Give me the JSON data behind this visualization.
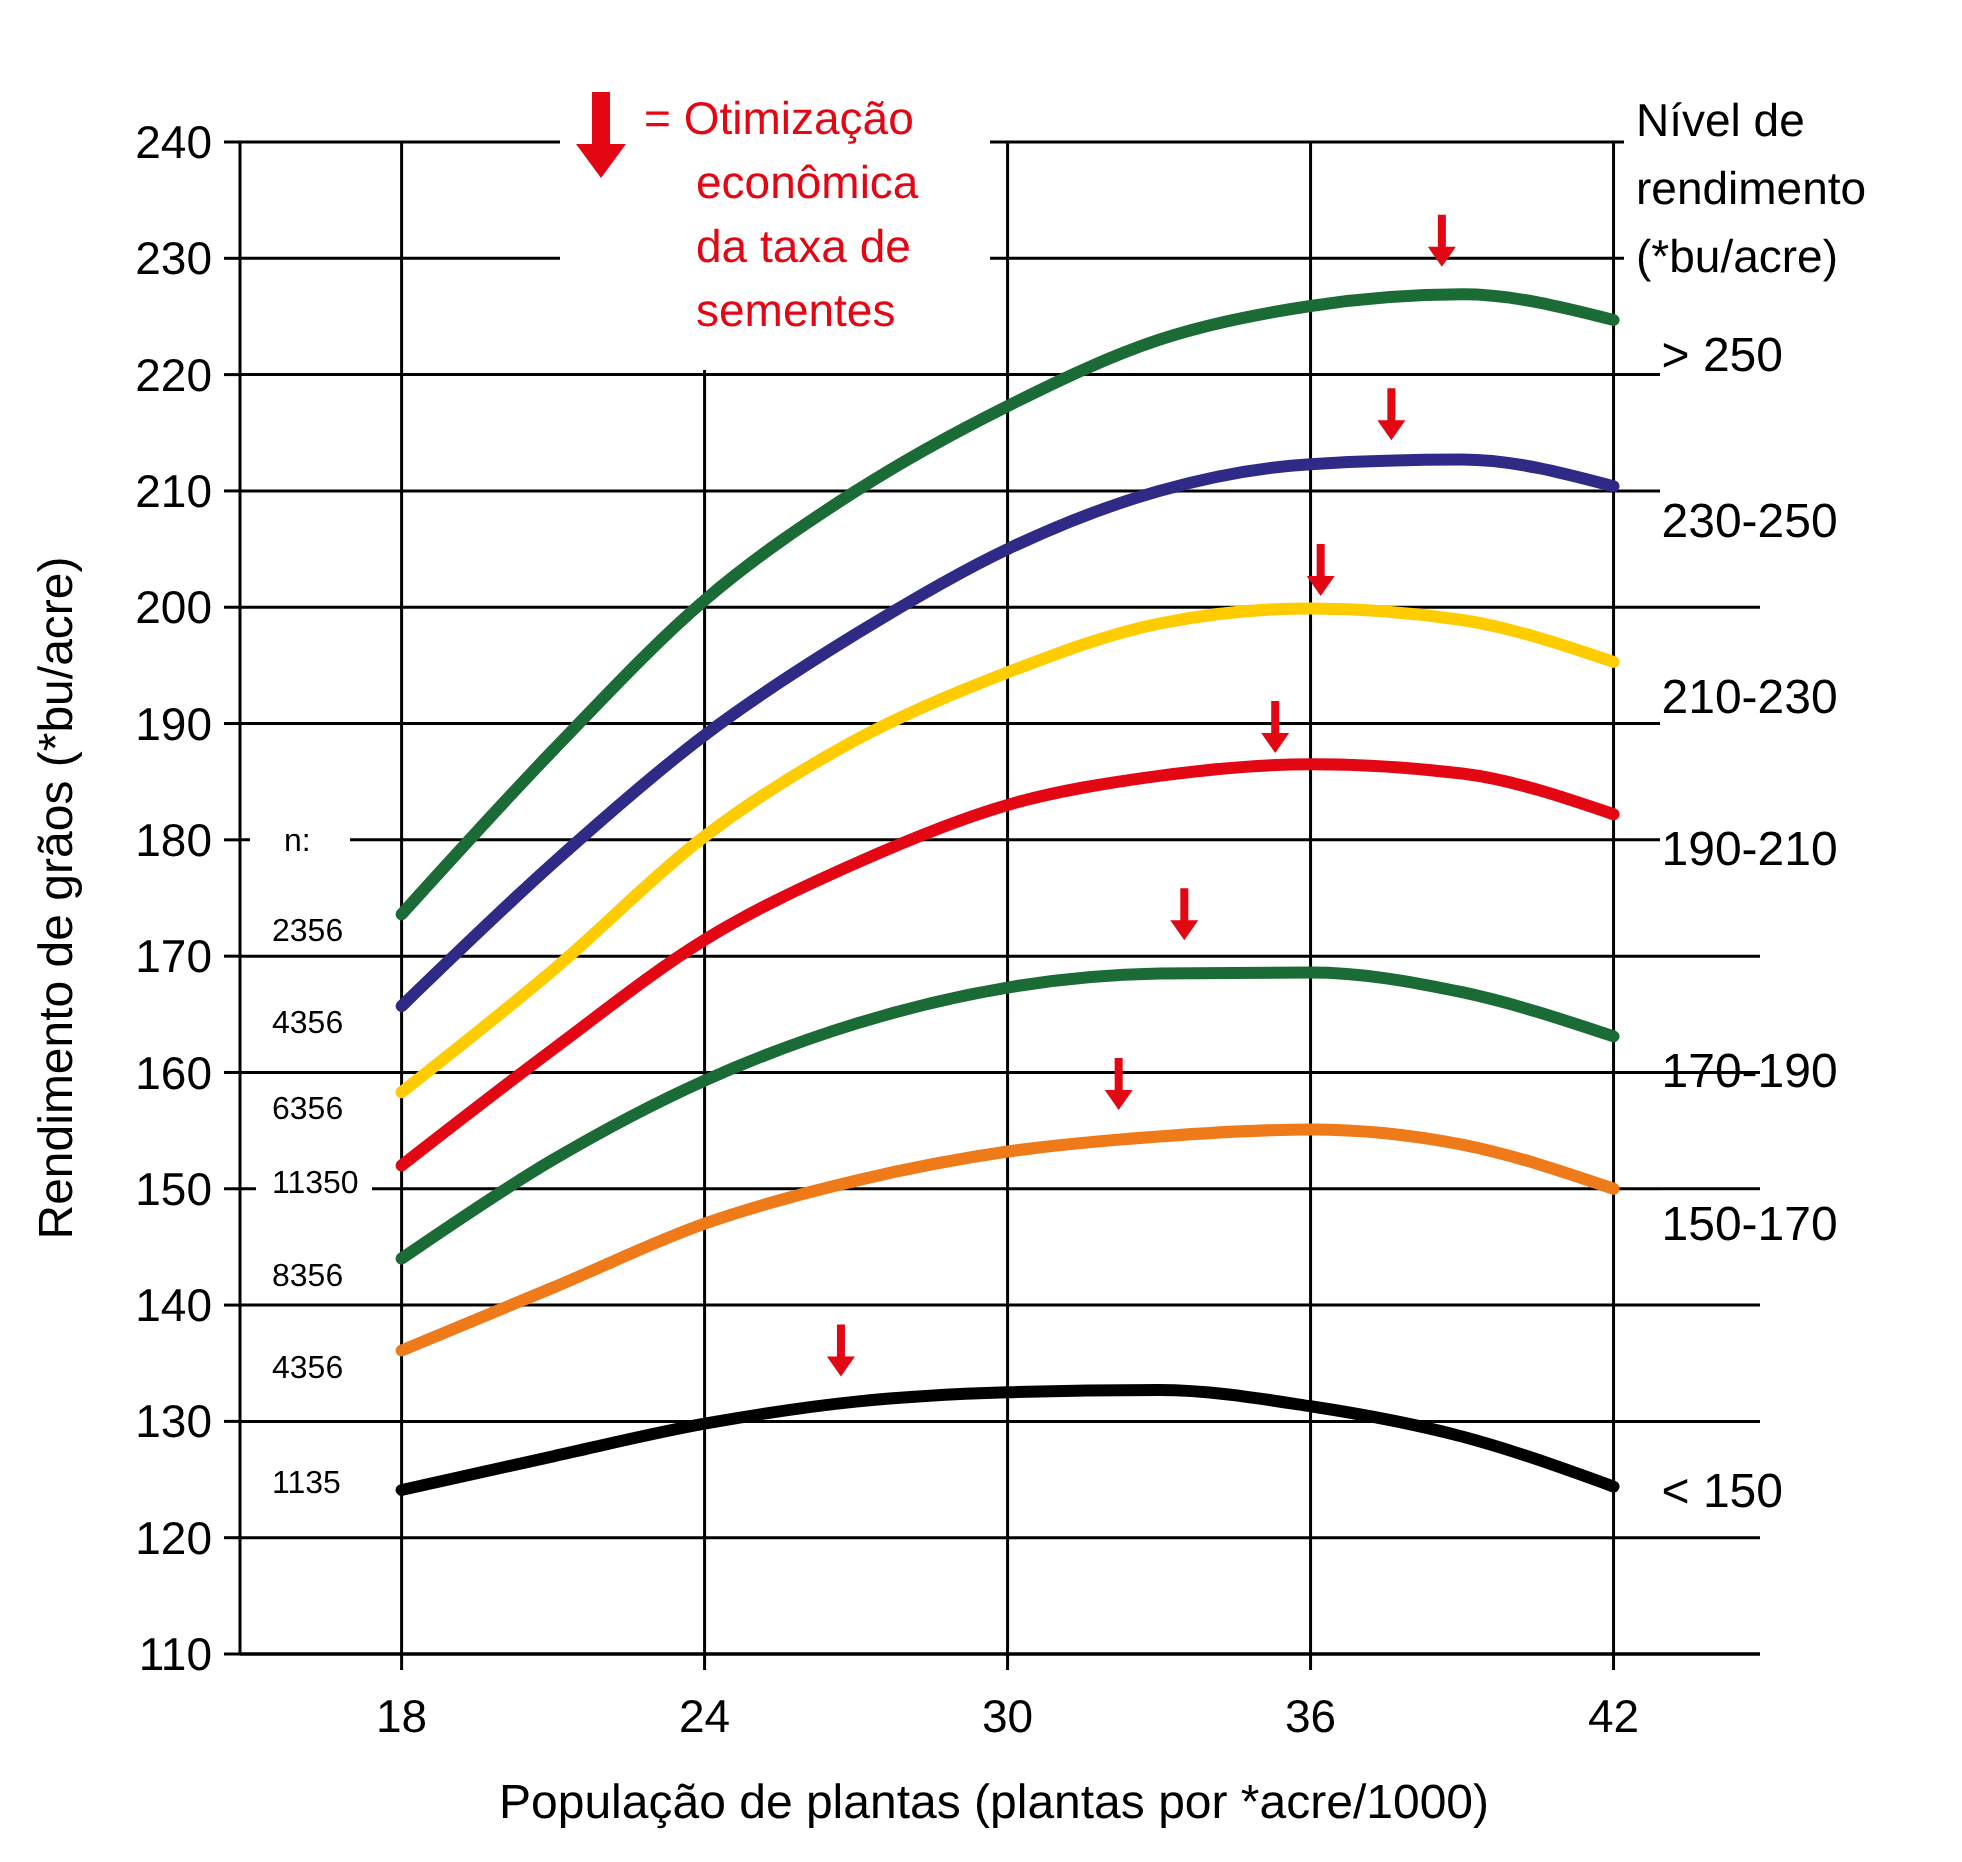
{
  "chart_data": {
    "type": "line",
    "xlabel": "População de plantas (plantas por *acre/1000)",
    "ylabel": "Rendimento de grãos (*bu/acre)",
    "legend_title": "Nível de rendimento (*bu/acre)",
    "legend": "right",
    "grid": true,
    "xlim": [
      14.8,
      44.9
    ],
    "xticks": [
      18,
      24,
      30,
      36,
      42
    ],
    "ylim": [
      110,
      240
    ],
    "yticks": [
      110,
      120,
      130,
      140,
      150,
      160,
      170,
      180,
      190,
      200,
      210,
      220,
      230,
      240
    ],
    "x": [
      18,
      21,
      24,
      27,
      30,
      33,
      36,
      39,
      42
    ],
    "series": [
      {
        "name": "> 250",
        "color": "#1a6b35",
        "values": [
          173.6,
          187.7,
          200.6,
          210,
          217.3,
          223,
          225.9,
          226.9,
          224.7
        ]
      },
      {
        "name": "230-250",
        "color": "#2e2a85",
        "values": [
          165.7,
          178,
          189,
          197.7,
          205,
          210,
          212.3,
          212.7,
          210.4
        ]
      },
      {
        "name": "210-230",
        "color": "#ffcc00",
        "values": [
          158.3,
          168.8,
          180.3,
          188.6,
          194.4,
          198.6,
          199.9,
          198.9,
          195.3
        ]
      },
      {
        "name": "190-210",
        "color": "#e30613",
        "values": [
          152,
          162,
          171.4,
          178,
          183,
          185.5,
          186.5,
          185.7,
          182.2
        ]
      },
      {
        "name": "170-190",
        "color": "#1a6b35",
        "values": [
          144,
          152.5,
          159.3,
          164.2,
          167.3,
          168.5,
          168.6,
          166.9,
          163.1
        ]
      },
      {
        "name": "150-170",
        "color": "#ef7a1a",
        "values": [
          136.1,
          141.5,
          147,
          150.7,
          153.2,
          154.5,
          155.1,
          153.8,
          150
        ]
      },
      {
        "name": "< 150",
        "color": "#000000",
        "values": [
          124.1,
          127,
          129.8,
          131.7,
          132.5,
          132.7,
          131.3,
          128.7,
          124.4
        ]
      },
      {
        "type": "scatter",
        "color": "#e30613",
        "x": [
          38.6,
          37.6,
          36.2,
          35.3,
          33.5,
          32.2,
          26.7
        ],
        "values": [
          231.5,
          216.6,
          203.2,
          189.7,
          173.6,
          159,
          136.1
        ]
      }
    ],
    "annotations": [
      "= Otimização\neconômica\nda taxa de\nsementes",
      "n:",
      "2356",
      "4356",
      "6356",
      "11350",
      "8356",
      "4356",
      "1135"
    ]
  }
}
